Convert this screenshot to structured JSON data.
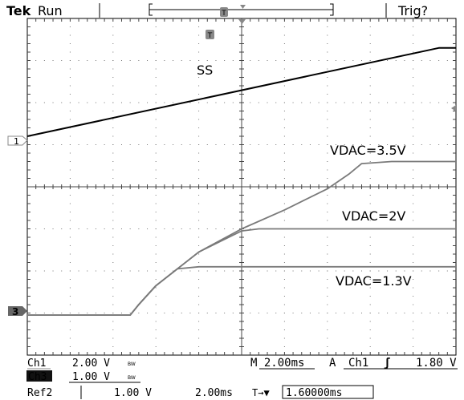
{
  "header": {
    "brand": "Tek",
    "run_state": "Run",
    "trigger_state": "Trig?",
    "trigger_marker": "T"
  },
  "channels": {
    "ch1_marker": "1",
    "ch3_marker": "3"
  },
  "footer": {
    "ch1_label": "Ch1",
    "ch1_scale": "2.00 V",
    "ch1_bw": "BW",
    "ch3_label": "Ch3",
    "ch3_scale": "1.00 V",
    "ch3_bw": "BW",
    "ref2_label": "Ref2",
    "ref2_scale": "1.00 V",
    "ref2_time": "2.00ms",
    "timebase": "M 2.00ms",
    "acq_mode": "A",
    "trigger_source": "Ch1",
    "trigger_slope": "ʃ",
    "trigger_level": "1.80 V",
    "delay_icon": "T→▼",
    "delay_value": "1.60000ms"
  },
  "chart_data": {
    "type": "line",
    "grid": true,
    "x_divisions": 10,
    "y_divisions": 8,
    "x_range_div": [
      0,
      10
    ],
    "y_range_div": [
      0,
      8
    ],
    "annotations": [
      {
        "text": "SS"
      },
      {
        "text": "VDAC=3.5V"
      },
      {
        "text": "VDAC=2V"
      },
      {
        "text": "VDAC=1.3V"
      }
    ],
    "series": [
      {
        "color": "#000000",
        "x": [
          0,
          9.6,
          10
        ],
        "y": [
          5.2,
          7.3,
          7.3
        ]
      },
      {
        "color": "#7a7a7a",
        "x": [
          0,
          2.4,
          2.6,
          3.0,
          4.0,
          5.0,
          6.0,
          7.0,
          7.5,
          7.8,
          8.5,
          10
        ],
        "y": [
          0.95,
          0.95,
          1.2,
          1.65,
          2.45,
          3.0,
          3.45,
          3.95,
          4.3,
          4.55,
          4.6,
          4.6
        ]
      },
      {
        "color": "#7a7a7a",
        "x": [
          0,
          2.4,
          2.6,
          3.0,
          4.0,
          5.0,
          5.4,
          10
        ],
        "y": [
          0.95,
          0.95,
          1.2,
          1.65,
          2.45,
          2.95,
          3.0,
          3.0
        ]
      },
      {
        "color": "#7a7a7a",
        "x": [
          0,
          2.4,
          2.6,
          3.0,
          3.5,
          4.0,
          10
        ],
        "y": [
          0.95,
          0.95,
          1.2,
          1.65,
          2.05,
          2.1,
          2.1
        ]
      }
    ]
  }
}
